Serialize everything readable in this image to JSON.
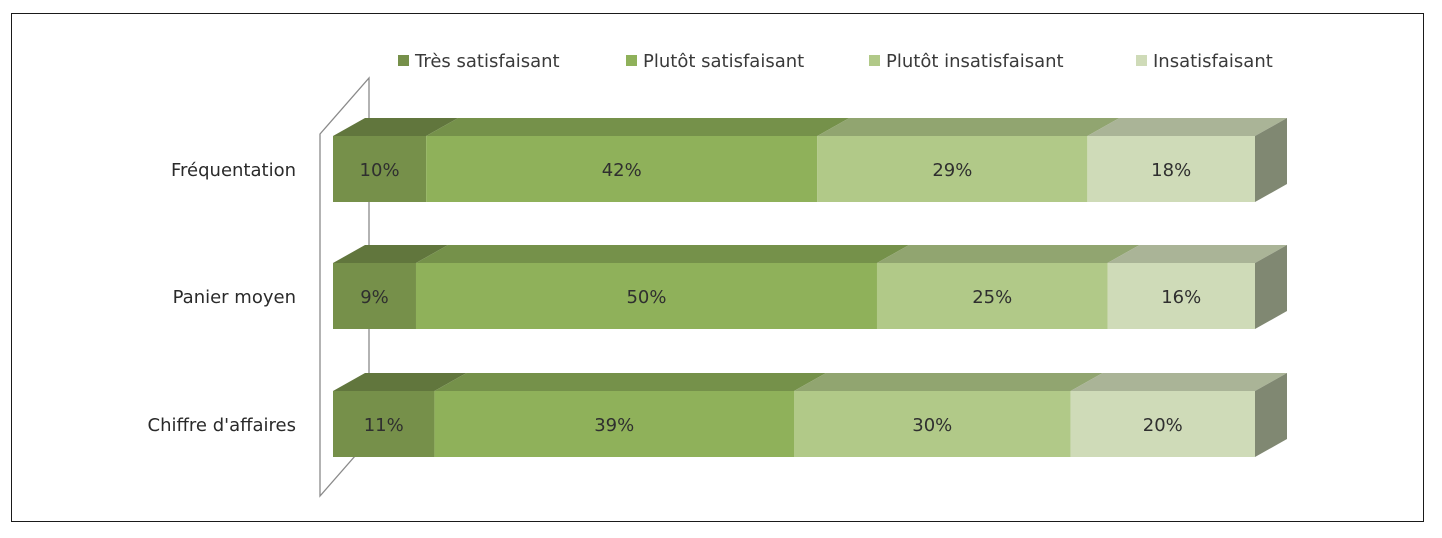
{
  "chart_data": {
    "type": "bar",
    "stacked": true,
    "orientation": "horizontal",
    "percent_stacked": true,
    "categories": [
      "Fréquentation",
      "Panier moyen",
      "Chiffre d'affaires"
    ],
    "series": [
      {
        "name": "Très satisfaisant",
        "values": [
          10,
          9,
          11
        ],
        "labels": [
          "10%",
          "9%",
          "11%"
        ],
        "color": "#76904a"
      },
      {
        "name": "Plutôt satisfaisant",
        "values": [
          42,
          50,
          39
        ],
        "labels": [
          "42%",
          "50%",
          "39%"
        ],
        "color": "#8fb15a"
      },
      {
        "name": "Plutôt insatisfaisant",
        "values": [
          29,
          25,
          30
        ],
        "labels": [
          "29%",
          "25%",
          "30%"
        ],
        "color": "#b1c988"
      },
      {
        "name": "Insatisfaisant",
        "values": [
          18,
          16,
          20
        ],
        "labels": [
          "18%",
          "16%",
          "20%"
        ],
        "color": "#cfdbb8"
      }
    ],
    "legend_position": "top",
    "grid": false,
    "style": "3d",
    "title": "",
    "xlabel": "",
    "ylabel": ""
  }
}
